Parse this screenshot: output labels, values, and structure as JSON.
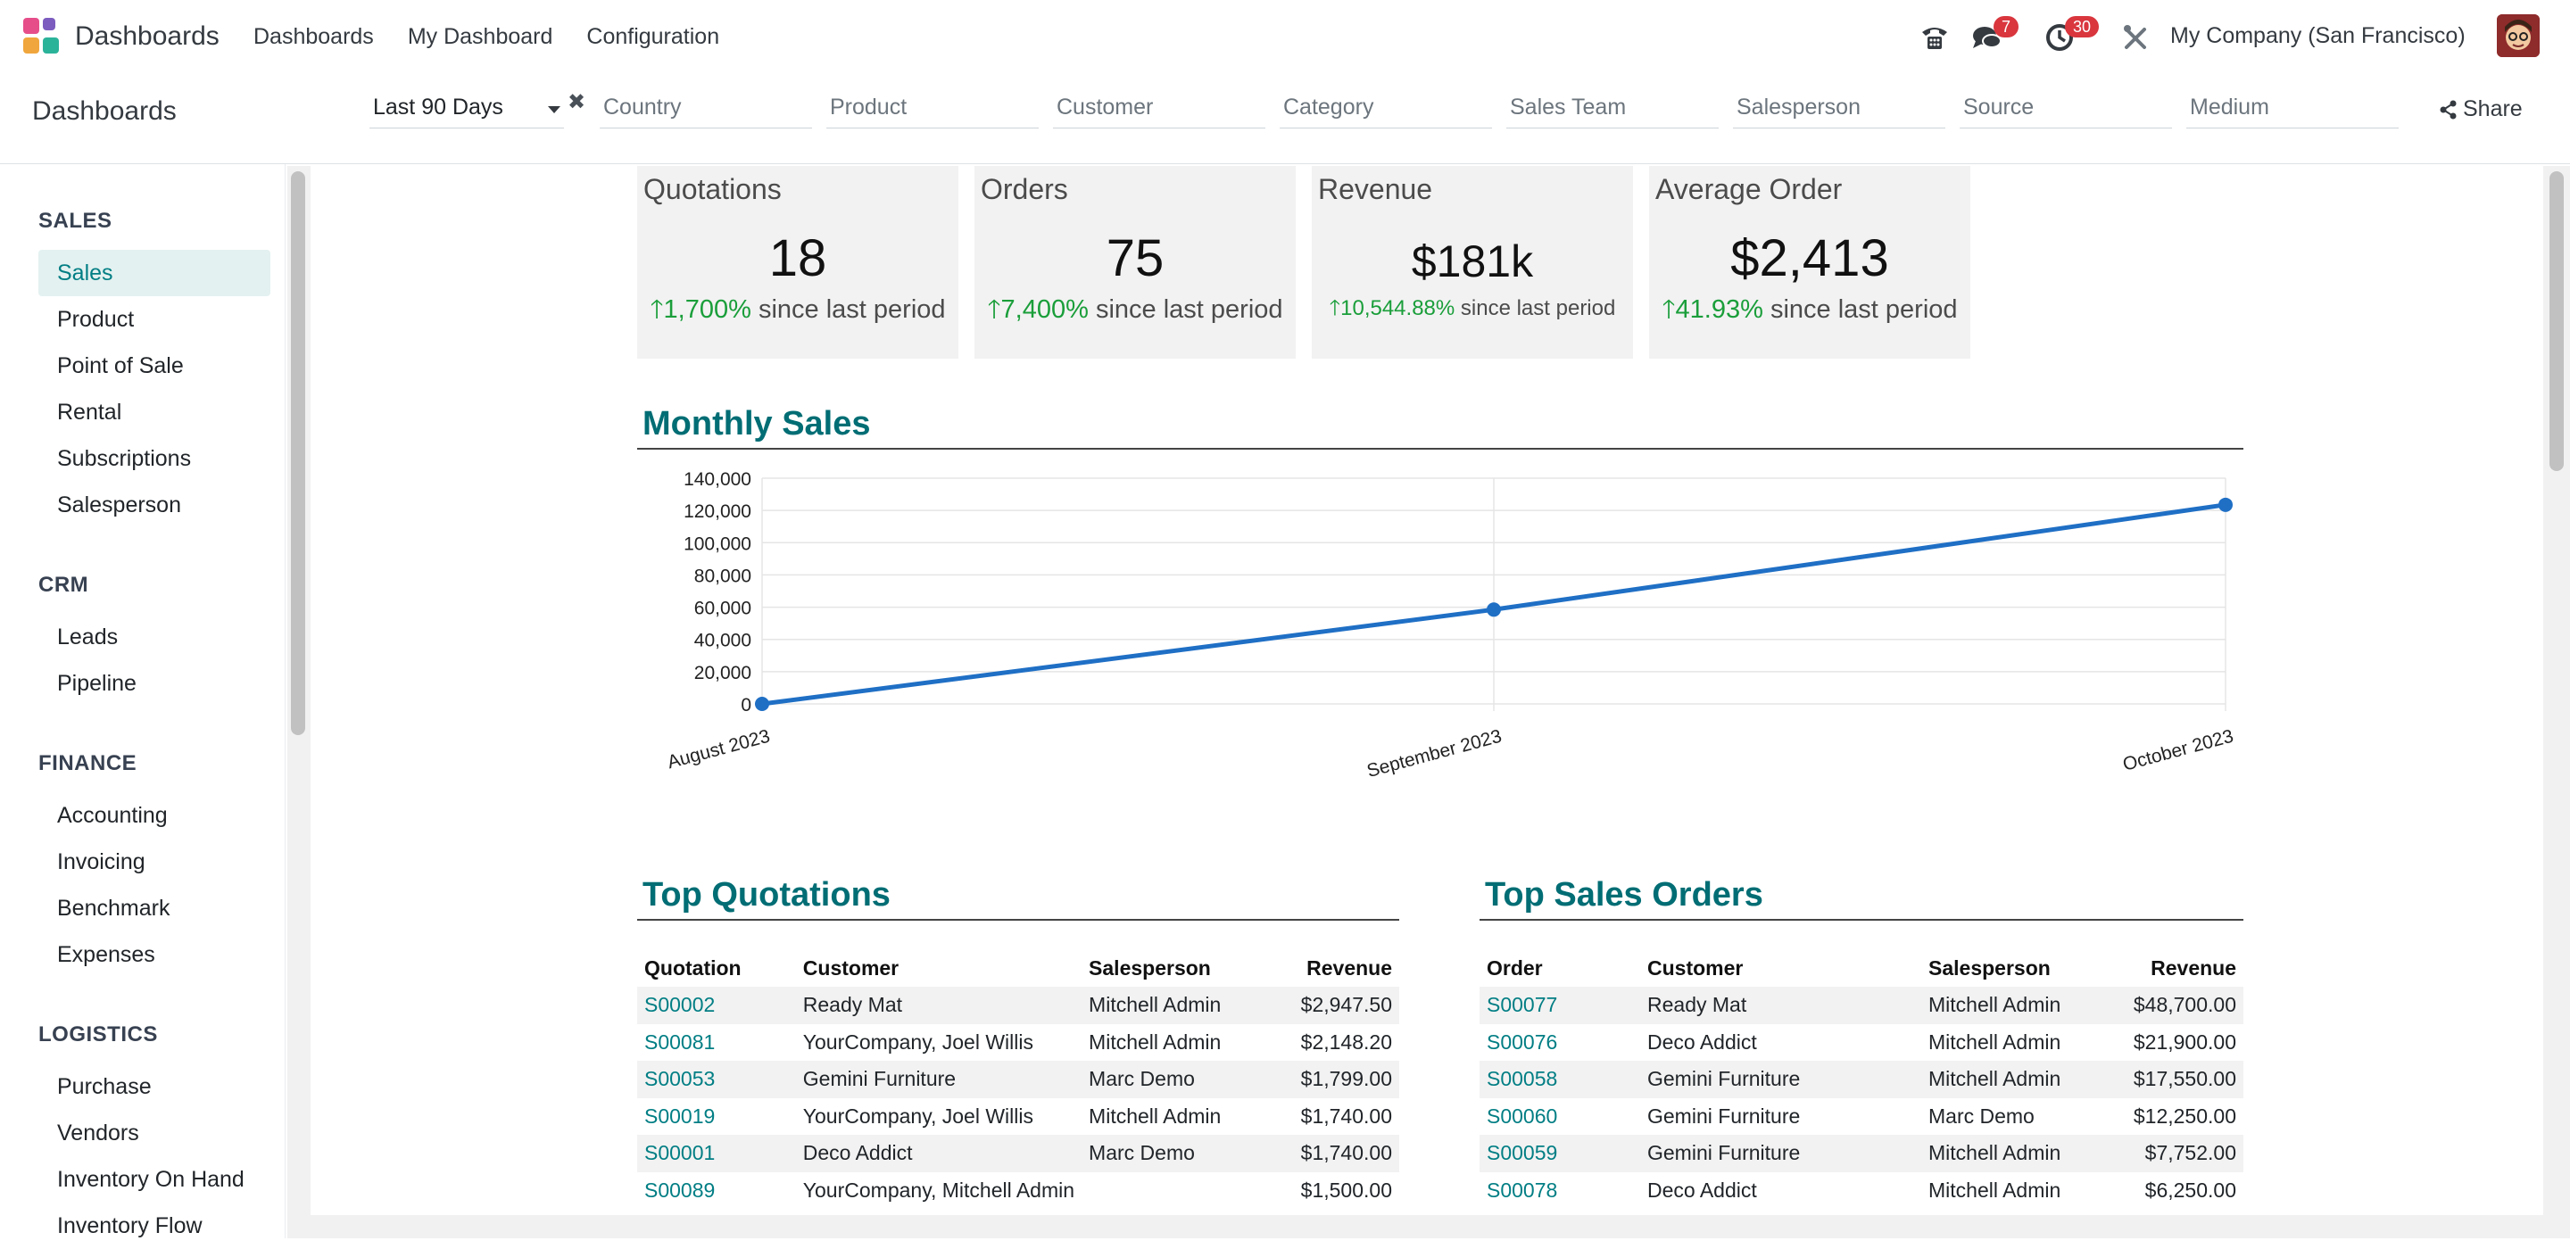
{
  "navbar": {
    "app_title": "Dashboards",
    "menu": [
      "Dashboards",
      "My Dashboard",
      "Configuration"
    ],
    "messages_badge": "7",
    "activities_badge": "30",
    "company": "My Company (San Francisco)",
    "icons": [
      "phone-icon",
      "chat-icon",
      "clock-icon",
      "tools-icon"
    ]
  },
  "control": {
    "breadcrumb": "Dashboards",
    "date_filter": "Last 90 Days",
    "filters": [
      "Country",
      "Product",
      "Customer",
      "Category",
      "Sales Team",
      "Salesperson",
      "Source",
      "Medium"
    ],
    "share_label": "Share"
  },
  "sidebar": {
    "sections": [
      {
        "title": "SALES",
        "items": [
          "Sales",
          "Product",
          "Point of Sale",
          "Rental",
          "Subscriptions",
          "Salesperson"
        ]
      },
      {
        "title": "CRM",
        "items": [
          "Leads",
          "Pipeline"
        ]
      },
      {
        "title": "FINANCE",
        "items": [
          "Accounting",
          "Invoicing",
          "Benchmark",
          "Expenses"
        ]
      },
      {
        "title": "LOGISTICS",
        "items": [
          "Purchase",
          "Vendors",
          "Inventory On Hand",
          "Inventory Flow"
        ]
      }
    ],
    "active_item": "Sales"
  },
  "kpis": [
    {
      "title": "Quotations",
      "value": "18",
      "pct": "1,700%",
      "suffix": "since last period"
    },
    {
      "title": "Orders",
      "value": "75",
      "pct": "7,400%",
      "suffix": "since last period"
    },
    {
      "title": "Revenue",
      "value": "$181k",
      "pct": "10,544.88%",
      "suffix": "since last period"
    },
    {
      "title": "Average Order",
      "value": "$2,413",
      "pct": "41.93%",
      "suffix": "since last period"
    }
  ],
  "monthly_sales_title": "Monthly Sales",
  "chart_data": {
    "type": "line",
    "title": "Monthly Sales",
    "categories": [
      "August 2023",
      "September 2023",
      "October 2023"
    ],
    "series": [
      {
        "name": "Sales",
        "values": [
          0,
          58500,
          123500
        ]
      }
    ],
    "ylim": [
      0,
      140000
    ],
    "yticks": [
      "0",
      "20,000",
      "40,000",
      "60,000",
      "80,000",
      "100,000",
      "120,000",
      "140,000"
    ],
    "color": "#1f6fc5"
  },
  "top_quotations": {
    "title": "Top Quotations",
    "headers": [
      "Quotation",
      "Customer",
      "Salesperson",
      "Revenue"
    ],
    "rows": [
      [
        "S00002",
        "Ready Mat",
        "Mitchell Admin",
        "$2,947.50"
      ],
      [
        "S00081",
        "YourCompany, Joel Willis",
        "Mitchell Admin",
        "$2,148.20"
      ],
      [
        "S00053",
        "Gemini Furniture",
        "Marc Demo",
        "$1,799.00"
      ],
      [
        "S00019",
        "YourCompany, Joel Willis",
        "Mitchell Admin",
        "$1,740.00"
      ],
      [
        "S00001",
        "Deco Addict",
        "Marc Demo",
        "$1,740.00"
      ],
      [
        "S00089",
        "YourCompany, Mitchell Admin",
        "",
        "$1,500.00"
      ]
    ]
  },
  "top_orders": {
    "title": "Top Sales Orders",
    "headers": [
      "Order",
      "Customer",
      "Salesperson",
      "Revenue"
    ],
    "rows": [
      [
        "S00077",
        "Ready Mat",
        "Mitchell Admin",
        "$48,700.00"
      ],
      [
        "S00076",
        "Deco Addict",
        "Mitchell Admin",
        "$21,900.00"
      ],
      [
        "S00058",
        "Gemini Furniture",
        "Mitchell Admin",
        "$17,550.00"
      ],
      [
        "S00060",
        "Gemini Furniture",
        "Marc Demo",
        "$12,250.00"
      ],
      [
        "S00059",
        "Gemini Furniture",
        "Mitchell Admin",
        "$7,752.00"
      ],
      [
        "S00078",
        "Deco Addict",
        "Mitchell Admin",
        "$6,250.00"
      ]
    ]
  }
}
